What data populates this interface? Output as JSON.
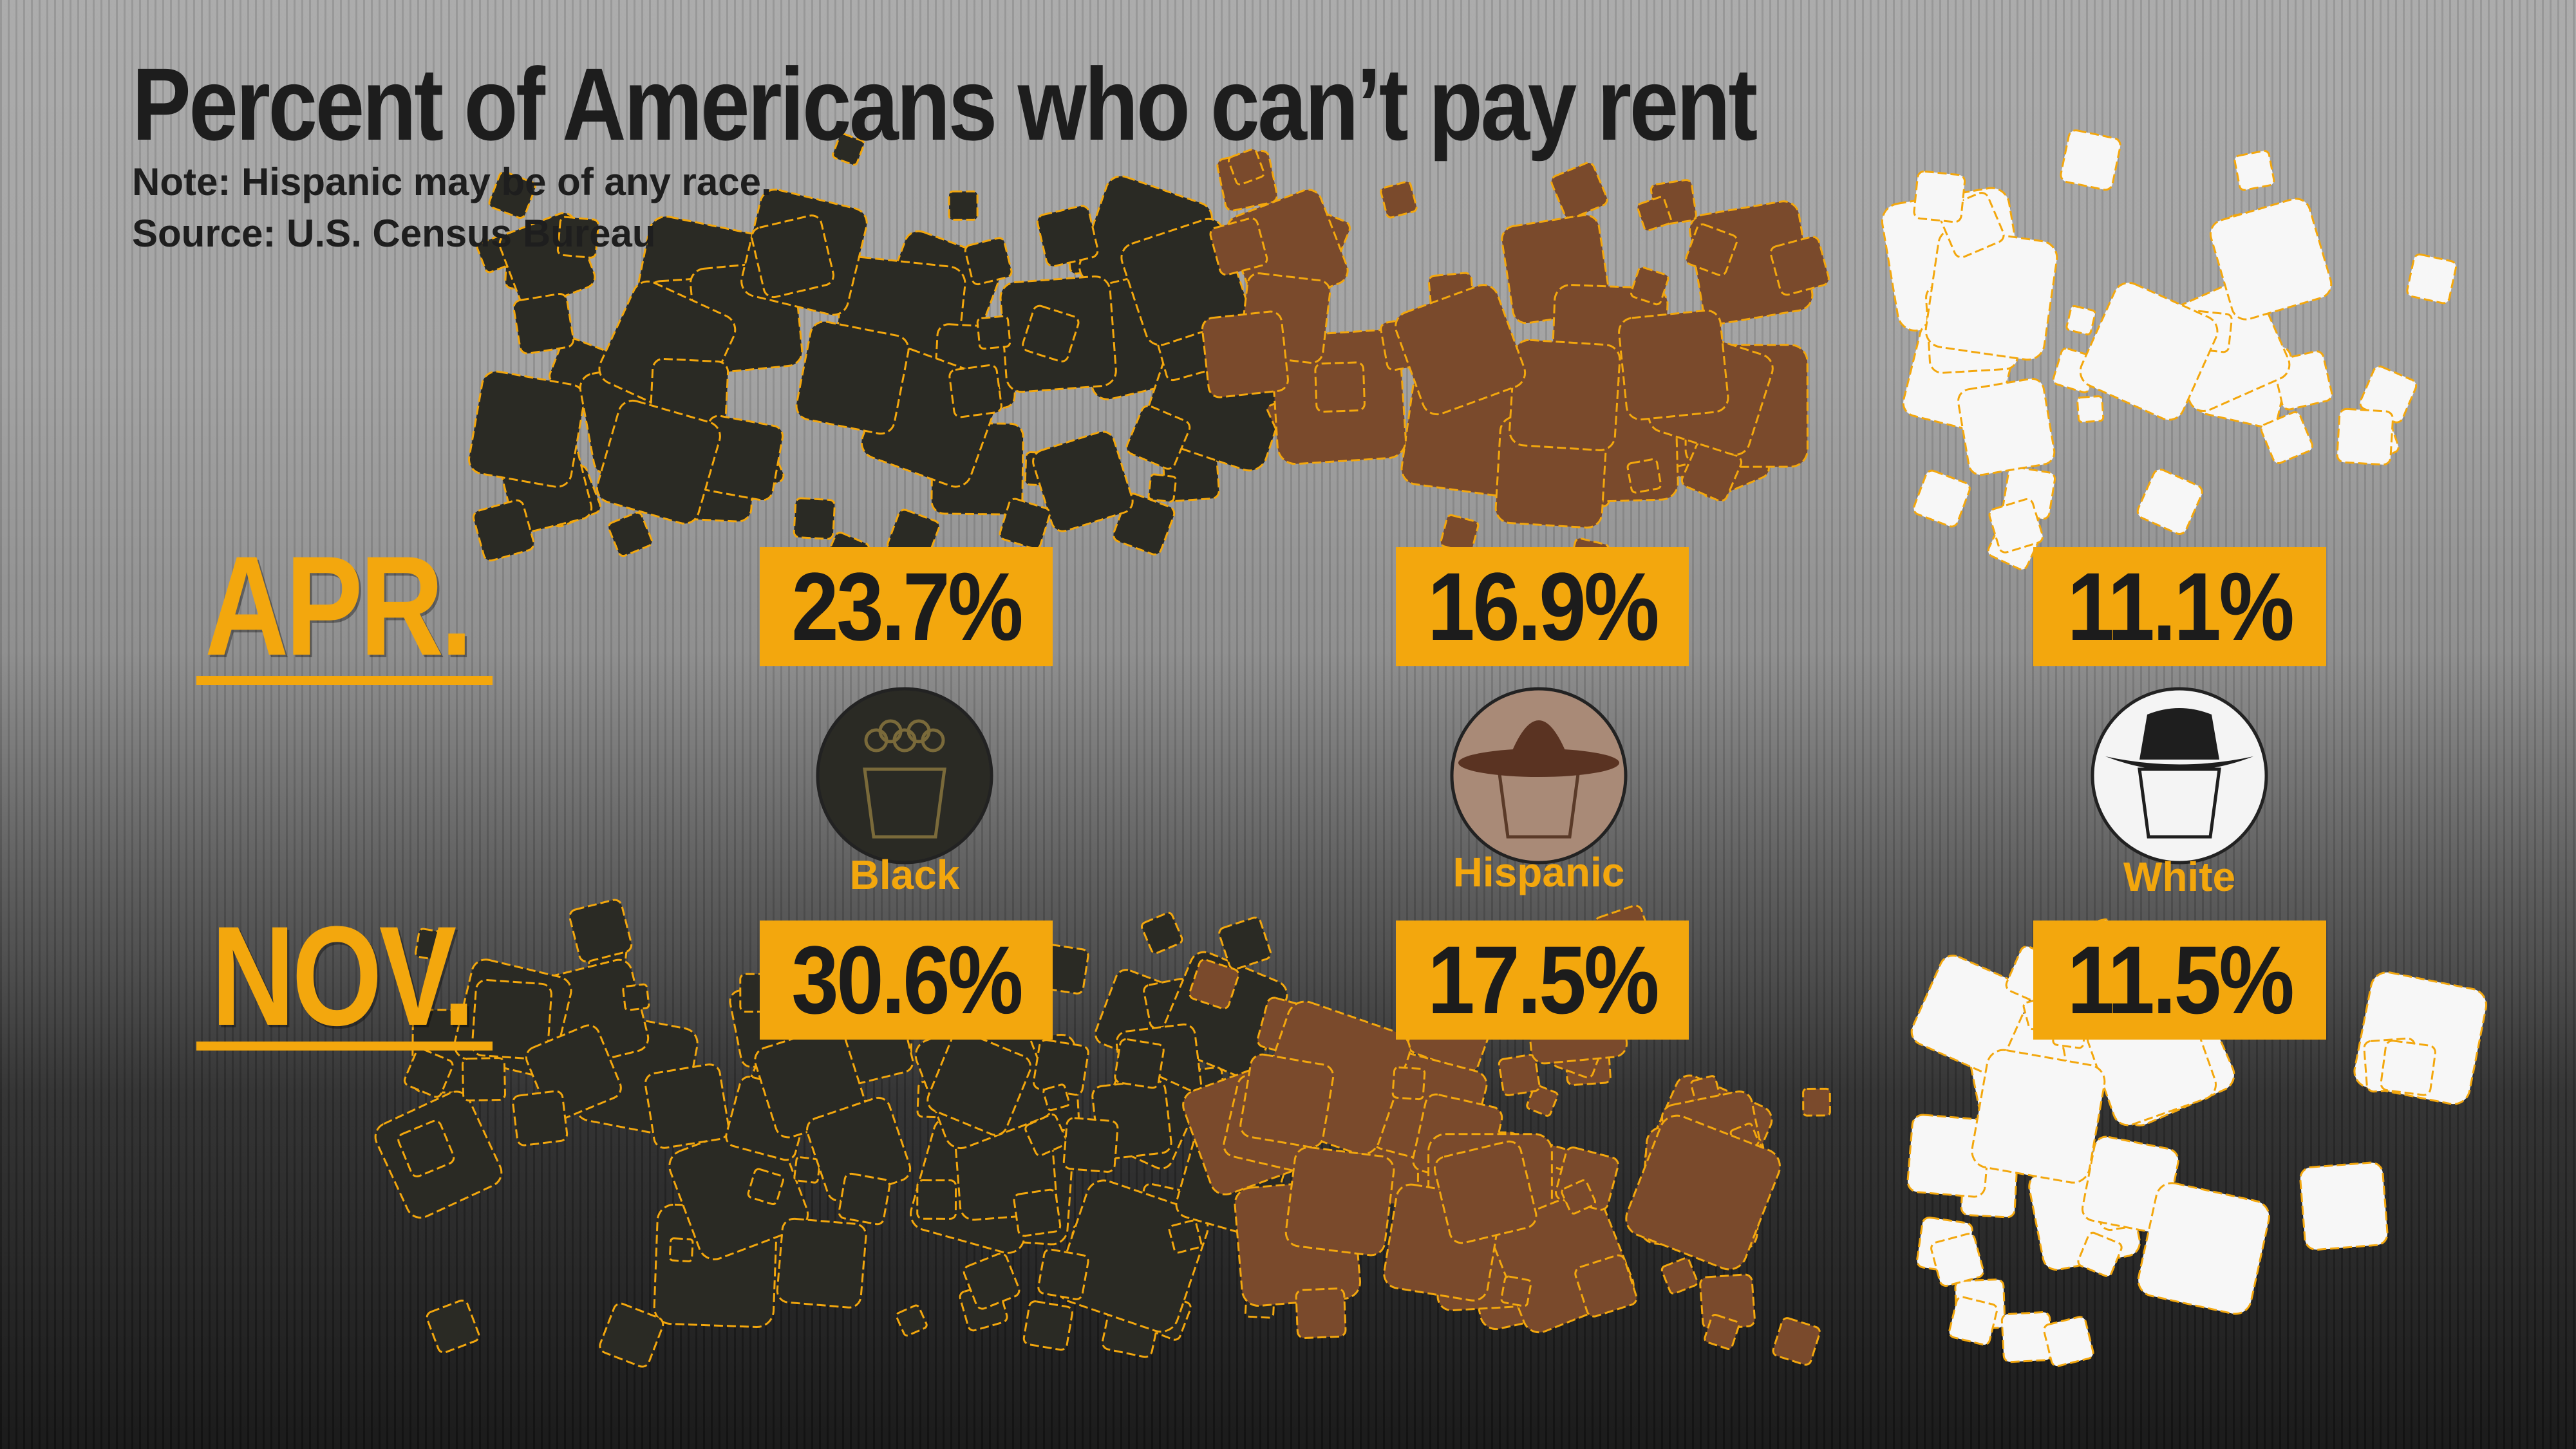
{
  "header": {
    "title": "Percent of Americans who can’t pay rent",
    "note": "Note: Hispanic may be of any race.",
    "source": "Source: U.S. Census Bureau"
  },
  "months": {
    "apr": "APR.",
    "nov": "NOV."
  },
  "groups": [
    {
      "label": "Black",
      "icon": "black-person-icon",
      "fill": "#2a2a24"
    },
    {
      "label": "Hispanic",
      "icon": "hispanic-person-sombrero-icon",
      "fill": "#7a4a2c"
    },
    {
      "label": "White",
      "icon": "white-person-fedora-icon",
      "fill": "#f7f7f7"
    }
  ],
  "colors": {
    "accent": "#f3a70d",
    "text_dark": "#1c1c1c"
  },
  "chart_data": {
    "type": "table",
    "categories": [
      "Black",
      "Hispanic",
      "White"
    ],
    "series": [
      {
        "name": "APR.",
        "values": [
          23.7,
          16.9,
          11.1
        ]
      },
      {
        "name": "NOV.",
        "values": [
          30.6,
          17.5,
          11.5
        ]
      }
    ],
    "value_labels": {
      "apr": [
        "23.7%",
        "16.9%",
        "11.1%"
      ],
      "nov": [
        "30.6%",
        "17.5%",
        "11.5%"
      ]
    },
    "unit": "%"
  }
}
